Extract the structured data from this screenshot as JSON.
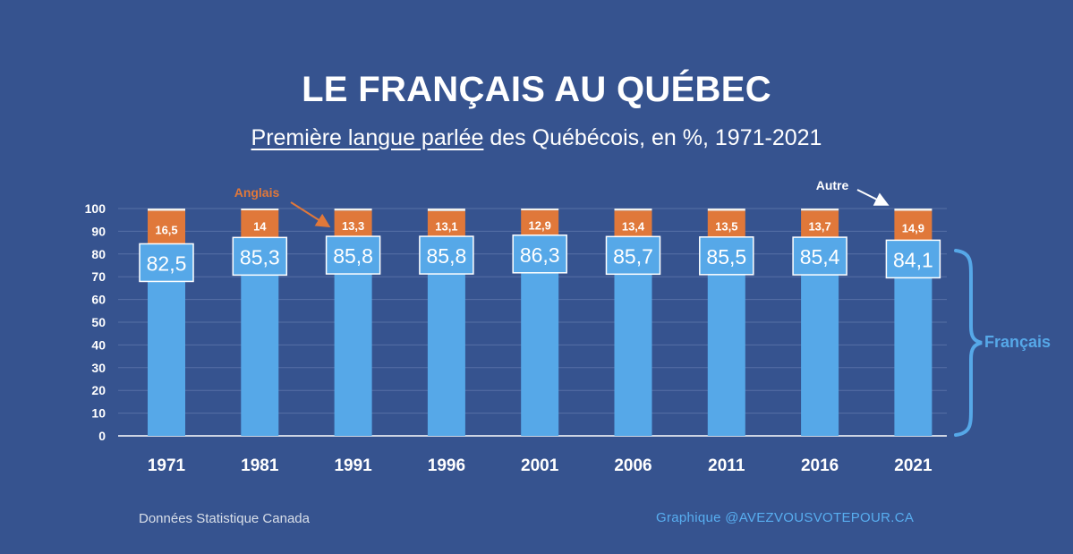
{
  "title": "LE FRANÇAIS AU QUÉBEC",
  "subtitle": {
    "underlined": "Première langue parlée",
    "rest": " des Québécois, en %, 1971-2021"
  },
  "source": "Données Statistique Canada",
  "credit": "Graphique @AVEZVOUSVOTEPOUR.CA",
  "colors": {
    "background": "#36538f",
    "francais": "#56a8e8",
    "anglais": "#e0783a",
    "autre": "#f3f1ec",
    "label_box_border": "#ffffff"
  },
  "chart_data": {
    "type": "bar",
    "stacked": true,
    "categories": [
      "1971",
      "1981",
      "1991",
      "1996",
      "2001",
      "2006",
      "2011",
      "2016",
      "2021"
    ],
    "series": [
      {
        "name": "Français",
        "values": [
          82.5,
          85.3,
          85.8,
          85.8,
          86.3,
          85.7,
          85.5,
          85.4,
          84.1
        ],
        "labels": [
          "82,5",
          "85,3",
          "85,8",
          "85,8",
          "86,3",
          "85,7",
          "85,5",
          "85,4",
          "84,1"
        ]
      },
      {
        "name": "Anglais",
        "values": [
          16.5,
          14,
          13.3,
          13.1,
          12.9,
          13.4,
          13.5,
          13.7,
          14.9
        ],
        "labels": [
          "16,5",
          "14",
          "13,3",
          "13,1",
          "12,9",
          "13,4",
          "13,5",
          "13,7",
          "14,9"
        ]
      },
      {
        "name": "Autre",
        "values": [
          1.0,
          0.7,
          0.9,
          1.1,
          0.8,
          0.9,
          1.0,
          0.9,
          1.0
        ]
      }
    ],
    "ylim": [
      0,
      100
    ],
    "yticks": [
      0,
      10,
      20,
      30,
      40,
      50,
      60,
      70,
      80,
      90,
      100
    ],
    "grid": true,
    "annotations": {
      "anglais": "Anglais",
      "autre": "Autre",
      "francais": "Français"
    }
  }
}
